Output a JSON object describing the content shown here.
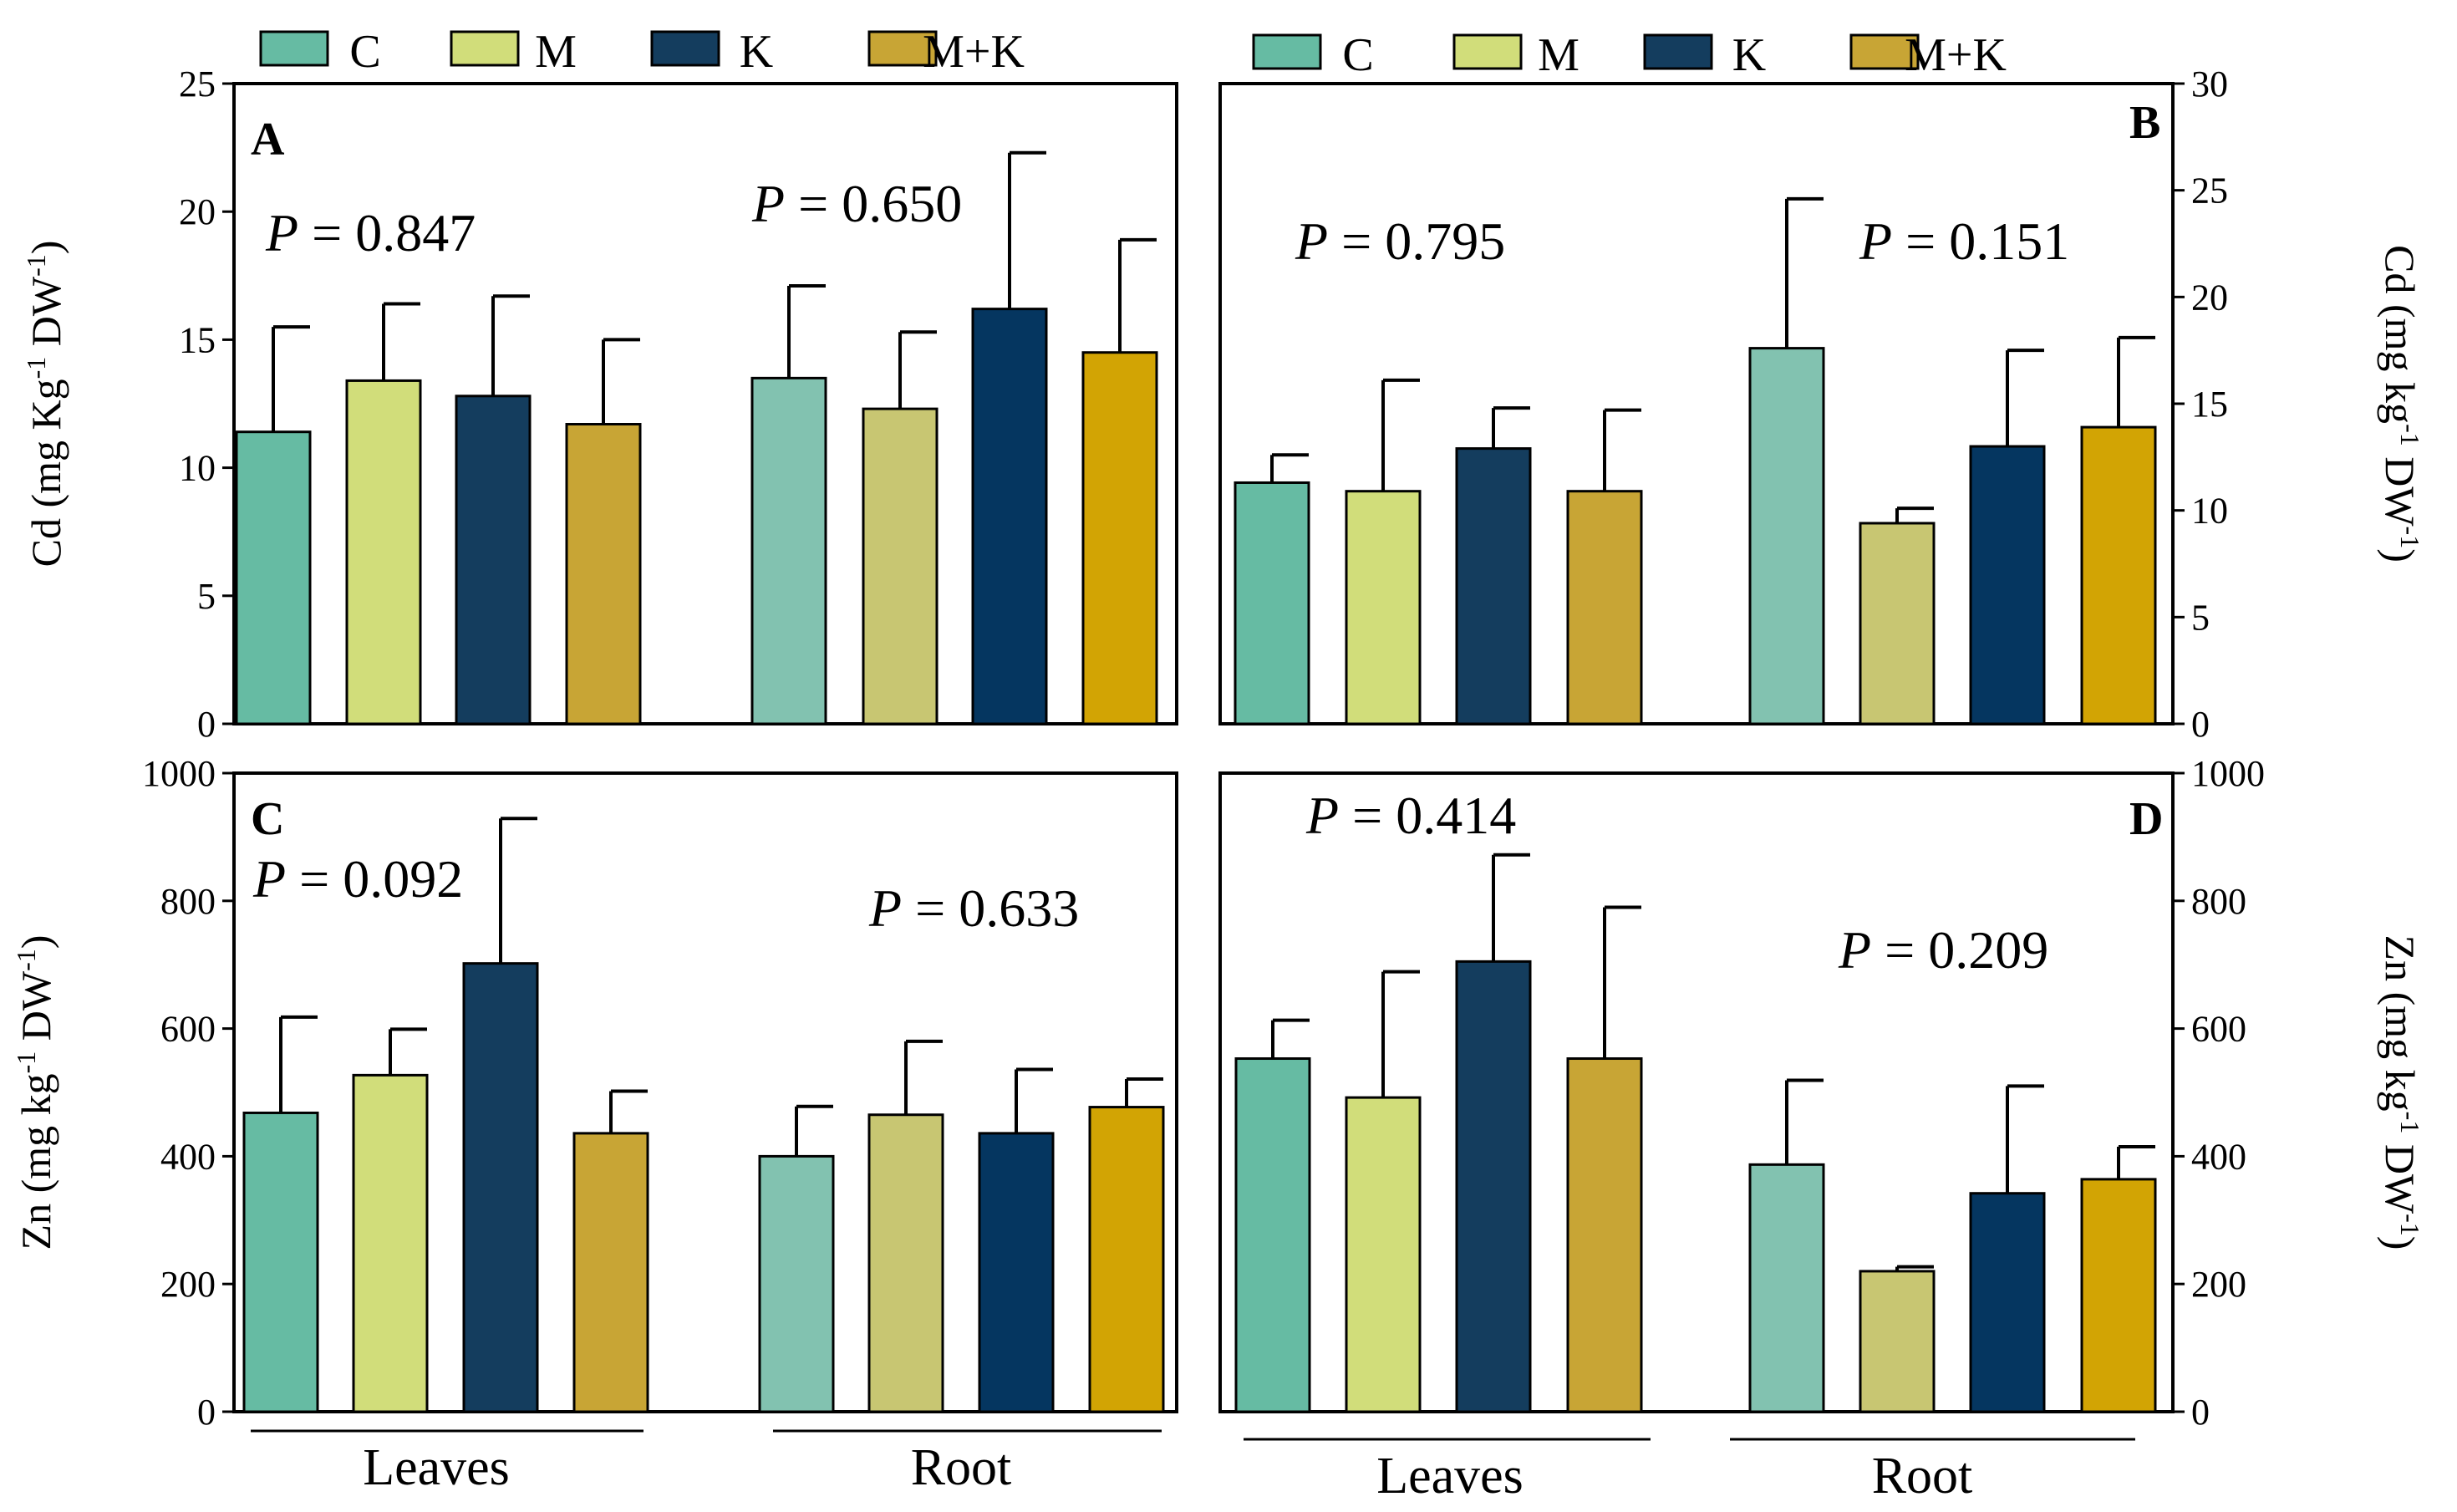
{
  "chart_data": [
    {
      "type": "bar",
      "panel": "A",
      "ylabel": "Cd (mg Kg-1 DW-1)",
      "ylabel_parts": [
        "Cd (mg Kg",
        "-1",
        " DW",
        "-1",
        ")"
      ],
      "yaxis_side": "left",
      "ylim": [
        0,
        25
      ],
      "yticks": [
        0,
        5,
        10,
        15,
        20,
        25
      ],
      "groups": [
        {
          "name": "Leaves",
          "p_prefix": "P",
          "p_value": "= 0.847",
          "bars": [
            {
              "series": "C",
              "value": 11.4,
              "error": 4.1
            },
            {
              "series": "M",
              "value": 13.4,
              "error": 3.0
            },
            {
              "series": "K",
              "value": 12.8,
              "error": 3.9
            },
            {
              "series": "M+K",
              "value": 11.7,
              "error": 3.3
            }
          ]
        },
        {
          "name": "Root",
          "p_prefix": "P",
          "p_value": "= 0.650",
          "bars": [
            {
              "series": "C",
              "value": 13.5,
              "error": 3.6
            },
            {
              "series": "M",
              "value": 12.3,
              "error": 3.0
            },
            {
              "series": "K",
              "value": 16.2,
              "error": 6.1
            },
            {
              "series": "M+K",
              "value": 14.5,
              "error": 4.4
            }
          ]
        }
      ]
    },
    {
      "type": "bar",
      "panel": "B",
      "ylabel": "Cd (mg kg-1 DW-1)",
      "ylabel_parts": [
        "Cd (mg kg",
        "-1",
        " DW",
        "-1",
        ")"
      ],
      "yaxis_side": "right",
      "ylim": [
        0,
        30
      ],
      "yticks": [
        0,
        5,
        10,
        15,
        20,
        25,
        30
      ],
      "groups": [
        {
          "name": "Leaves",
          "p_prefix": "P",
          "p_value": "= 0.795",
          "bars": [
            {
              "series": "C",
              "value": 11.3,
              "error": 1.3
            },
            {
              "series": "M",
              "value": 10.9,
              "error": 5.2
            },
            {
              "series": "K",
              "value": 12.9,
              "error": 1.9
            },
            {
              "series": "M+K",
              "value": 10.9,
              "error": 3.8
            }
          ]
        },
        {
          "name": "Root",
          "p_prefix": "P",
          "p_value": "= 0.151",
          "bars": [
            {
              "series": "C",
              "value": 17.6,
              "error": 7.0
            },
            {
              "series": "M",
              "value": 9.4,
              "error": 0.7
            },
            {
              "series": "K",
              "value": 13.0,
              "error": 4.5
            },
            {
              "series": "M+K",
              "value": 13.9,
              "error": 4.2
            }
          ]
        }
      ]
    },
    {
      "type": "bar",
      "panel": "C",
      "ylabel": "Zn (mg kg-1 DW-1)",
      "ylabel_parts": [
        "Zn (mg kg",
        "-1",
        " DW",
        "-1",
        ")"
      ],
      "yaxis_side": "left",
      "ylim": [
        0,
        1000
      ],
      "yticks": [
        0,
        200,
        400,
        600,
        800,
        1000
      ],
      "groups": [
        {
          "name": "Leaves",
          "p_prefix": "P",
          "p_value": "= 0.092",
          "bars": [
            {
              "series": "C",
              "value": 468,
              "error": 150
            },
            {
              "series": "M",
              "value": 527,
              "error": 72
            },
            {
              "series": "K",
              "value": 702,
              "error": 227
            },
            {
              "series": "M+K",
              "value": 436,
              "error": 66
            }
          ]
        },
        {
          "name": "Root",
          "p_prefix": "P",
          "p_value": "= 0.633",
          "bars": [
            {
              "series": "C",
              "value": 400,
              "error": 78
            },
            {
              "series": "M",
              "value": 465,
              "error": 115
            },
            {
              "series": "K",
              "value": 436,
              "error": 100
            },
            {
              "series": "M+K",
              "value": 477,
              "error": 44
            }
          ]
        }
      ]
    },
    {
      "type": "bar",
      "panel": "D",
      "ylabel": "Zn (mg kg-1 DW-1)",
      "ylabel_parts": [
        "Zn (mg kg",
        "-1",
        " DW",
        "-1",
        ")"
      ],
      "yaxis_side": "right",
      "ylim": [
        0,
        1000
      ],
      "yticks": [
        0,
        200,
        400,
        600,
        800,
        1000
      ],
      "groups": [
        {
          "name": "Leaves",
          "p_prefix": "P",
          "p_value": "= 0.414",
          "bars": [
            {
              "series": "C",
              "value": 553,
              "error": 60
            },
            {
              "series": "M",
              "value": 492,
              "error": 197
            },
            {
              "series": "K",
              "value": 705,
              "error": 167
            },
            {
              "series": "M+K",
              "value": 553,
              "error": 237
            }
          ]
        },
        {
          "name": "Root",
          "p_prefix": "P",
          "p_value": "= 0.209",
          "bars": [
            {
              "series": "C",
              "value": 387,
              "error": 132
            },
            {
              "series": "M",
              "value": 220,
              "error": 7
            },
            {
              "series": "K",
              "value": 342,
              "error": 168
            },
            {
              "series": "M+K",
              "value": 364,
              "error": 51
            }
          ]
        }
      ]
    }
  ],
  "legend": [
    {
      "label": "C",
      "color": "#66bba3"
    },
    {
      "label": "M",
      "color": "#d1dd7a"
    },
    {
      "label": "K",
      "color": "#143d5e"
    },
    {
      "label": "M+K",
      "color": "#c8a535"
    }
  ],
  "colors": {
    "leaves": {
      "C": "#66bba3",
      "M": "#d1dd7a",
      "K": "#143d5e",
      "M+K": "#c8a535"
    },
    "root": {
      "C": "#82c2b0",
      "M": "#c8c672",
      "K": "#053660",
      "M+K": "#d2a404"
    }
  }
}
